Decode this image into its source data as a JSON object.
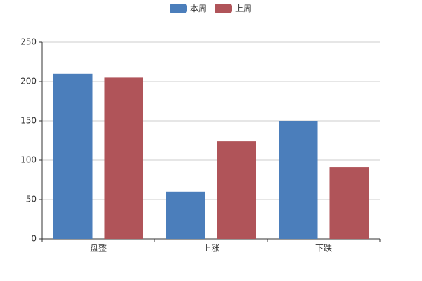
{
  "chart_data": {
    "type": "bar",
    "categories": [
      "盘整",
      "上涨",
      "下跌"
    ],
    "series": [
      {
        "name": "本周",
        "color": "#4b7ebb",
        "values": [
          210,
          60,
          150
        ]
      },
      {
        "name": "上周",
        "color": "#b05459",
        "values": [
          205,
          124,
          91
        ]
      }
    ],
    "ylim": [
      0,
      250
    ],
    "yticks": [
      0,
      50,
      100,
      150,
      200,
      250
    ],
    "grid": true,
    "legend": "top"
  }
}
